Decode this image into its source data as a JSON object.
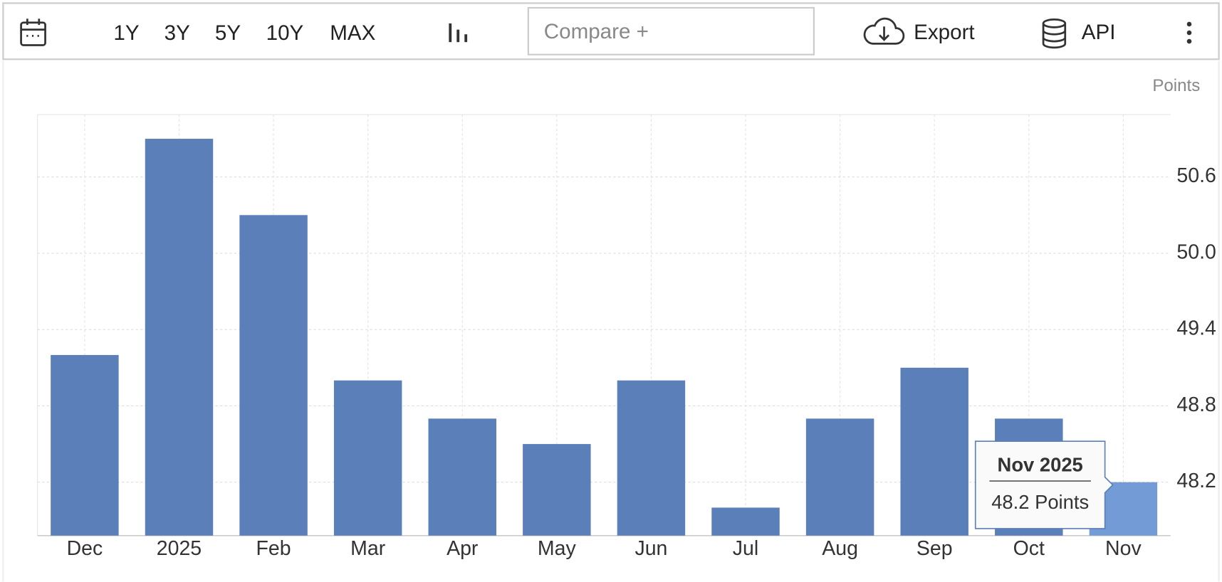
{
  "toolbar": {
    "ranges": [
      "1Y",
      "3Y",
      "5Y",
      "10Y",
      "MAX"
    ],
    "compare": "Compare +",
    "export": "Export",
    "api": "API"
  },
  "chart_data": {
    "type": "bar",
    "unit_label": "Points",
    "categories": [
      "Dec",
      "2025",
      "Feb",
      "Mar",
      "Apr",
      "May",
      "Jun",
      "Jul",
      "Aug",
      "Sep",
      "Oct",
      "Nov"
    ],
    "values": [
      49.2,
      50.9,
      50.3,
      49.0,
      48.7,
      48.5,
      49.0,
      48.0,
      48.7,
      49.1,
      48.7,
      48.2
    ],
    "colors": [
      "#5b7fb8",
      "#5b7fb8",
      "#5b7fb8",
      "#5b7fb8",
      "#5b7fb8",
      "#5b7fb8",
      "#5b7fb8",
      "#5b7fb8",
      "#5b7fb8",
      "#5b7fb8",
      "#5b7fb8",
      "#739bd6"
    ],
    "ylim": [
      47.78,
      51.09
    ],
    "yticks": [
      48.2,
      48.8,
      49.4,
      {
        "value": 50,
        "label": "50.0"
      },
      50.6
    ],
    "grid": true,
    "y_axis_side": "right",
    "tooltip": {
      "title": "Nov 2025",
      "text": "48.2 Points"
    }
  }
}
